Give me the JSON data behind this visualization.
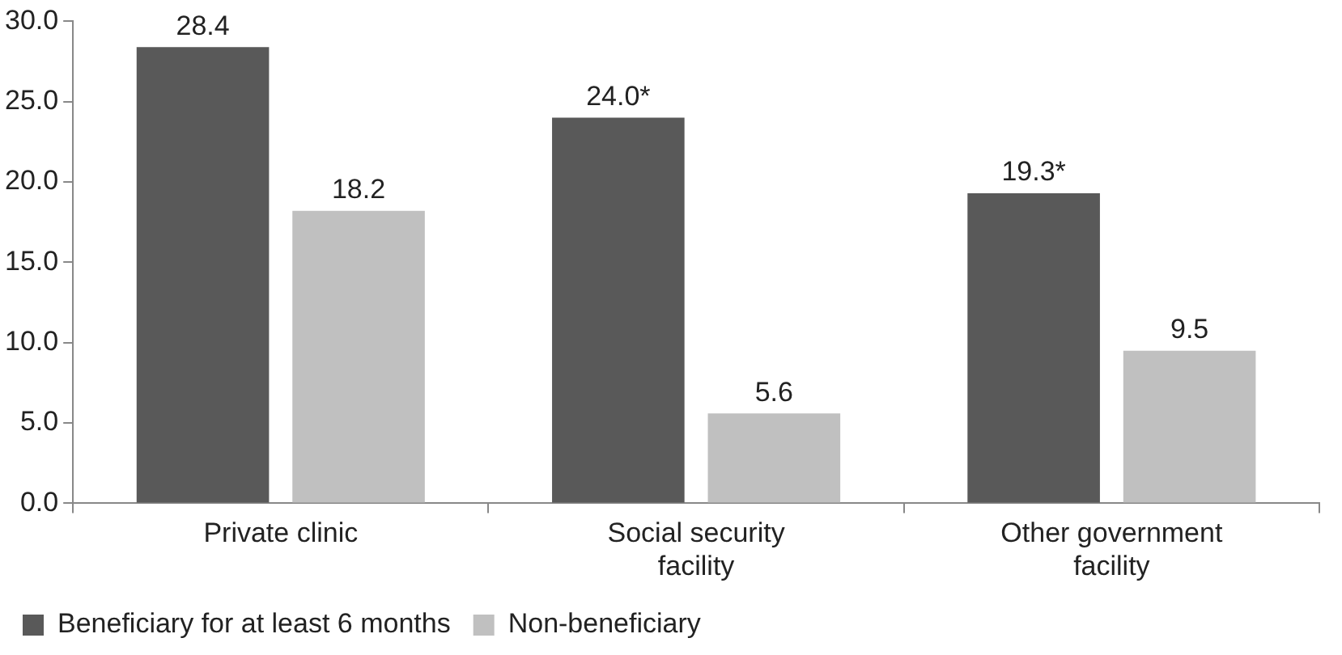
{
  "chart_data": {
    "type": "bar",
    "categories": [
      "Private clinic",
      "Social security facility",
      "Other government facility"
    ],
    "series": [
      {
        "name": "Beneficiary for at least 6 months",
        "color": "#595959",
        "values": [
          28.4,
          24.0,
          19.3
        ],
        "value_labels": [
          "28.4",
          "24.0*",
          "19.3*"
        ]
      },
      {
        "name": "Non-beneficiary",
        "color": "#c0c0c0",
        "values": [
          18.2,
          5.6,
          9.5
        ],
        "value_labels": [
          "18.2",
          "5.6",
          "9.5"
        ]
      }
    ],
    "ylim": [
      0,
      30
    ],
    "yticks": [
      {
        "value": 0,
        "label": "0.0"
      },
      {
        "value": 5,
        "label": "5.0"
      },
      {
        "value": 10,
        "label": "10.0"
      },
      {
        "value": 15,
        "label": "15.0"
      },
      {
        "value": 20,
        "label": "20.0"
      },
      {
        "value": 25,
        "label": "25.0"
      },
      {
        "value": 30,
        "label": "30.0"
      }
    ],
    "grid": false,
    "legend": "bottom left"
  }
}
